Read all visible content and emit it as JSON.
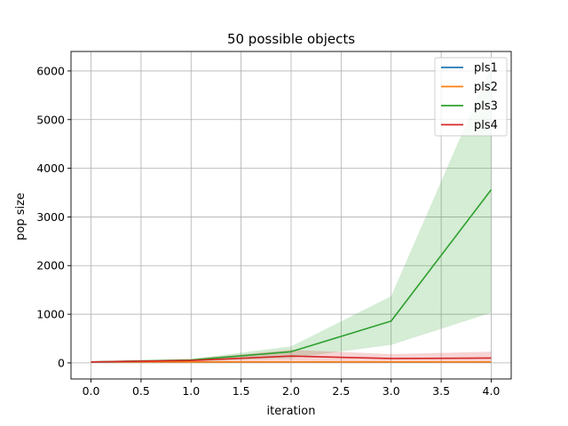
{
  "chart_data": {
    "type": "line",
    "title": "50 possible objects",
    "xlabel": "iteration",
    "ylabel": "pop size",
    "xlim": [
      -0.2,
      4.2
    ],
    "ylim": [
      -330,
      6400
    ],
    "xticks": [
      0.0,
      0.5,
      1.0,
      1.5,
      2.0,
      2.5,
      3.0,
      3.5,
      4.0
    ],
    "xtick_labels": [
      "0.0",
      "0.5",
      "1.0",
      "1.5",
      "2.0",
      "2.5",
      "3.0",
      "3.5",
      "4.0"
    ],
    "yticks": [
      0,
      1000,
      2000,
      3000,
      4000,
      5000,
      6000
    ],
    "ytick_labels": [
      "0",
      "1000",
      "2000",
      "3000",
      "4000",
      "5000",
      "6000"
    ],
    "grid": true,
    "legend_position": "top-right",
    "x": [
      0,
      1,
      2,
      3,
      4
    ],
    "series": [
      {
        "name": "pls1",
        "color": "#1f77b4",
        "values": [
          20,
          20,
          20,
          20,
          20
        ],
        "lower": [
          20,
          20,
          20,
          20,
          20
        ],
        "upper": [
          20,
          20,
          20,
          20,
          20
        ]
      },
      {
        "name": "pls2",
        "color": "#ff7f0e",
        "values": [
          20,
          20,
          20,
          20,
          20
        ],
        "lower": [
          20,
          20,
          20,
          20,
          20
        ],
        "upper": [
          20,
          20,
          20,
          20,
          20
        ]
      },
      {
        "name": "pls3",
        "color": "#2ca02c",
        "values": [
          20,
          60,
          230,
          860,
          3560
        ],
        "lower": [
          10,
          30,
          100,
          370,
          1030
        ],
        "upper": [
          30,
          80,
          340,
          1370,
          6090
        ]
      },
      {
        "name": "pls4",
        "color": "#d62728",
        "values": [
          20,
          50,
          140,
          90,
          100
        ],
        "lower": [
          10,
          30,
          40,
          20,
          20
        ],
        "upper": [
          30,
          80,
          270,
          180,
          230
        ]
      }
    ]
  }
}
